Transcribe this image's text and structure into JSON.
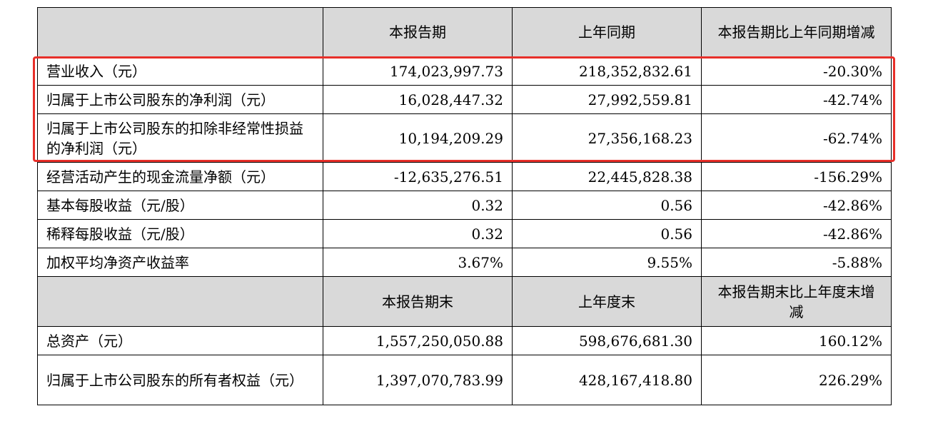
{
  "header1": {
    "blank": "",
    "current": "本报告期",
    "prior": "上年同期",
    "change": "本报告期比上年同期增减"
  },
  "rows1": [
    {
      "label": "营业收入（元）",
      "current": "174,023,997.73",
      "prior": "218,352,832.61",
      "change": "-20.30%"
    },
    {
      "label": "归属于上市公司股东的净利润（元）",
      "current": "16,028,447.32",
      "prior": "27,992,559.81",
      "change": "-42.74%"
    },
    {
      "label": "归属于上市公司股东的扣除非经常性损益的净利润（元）",
      "current": "10,194,209.29",
      "prior": "27,356,168.23",
      "change": "-62.74%"
    },
    {
      "label": "经营活动产生的现金流量净额（元）",
      "current": "-12,635,276.51",
      "prior": "22,445,828.38",
      "change": "-156.29%"
    },
    {
      "label": "基本每股收益（元/股）",
      "current": "0.32",
      "prior": "0.56",
      "change": "-42.86%"
    },
    {
      "label": "稀释每股收益（元/股）",
      "current": "0.32",
      "prior": "0.56",
      "change": "-42.86%"
    },
    {
      "label": "加权平均净资产收益率",
      "current": "3.67%",
      "prior": "9.55%",
      "change": "-5.88%"
    }
  ],
  "header2": {
    "blank": "",
    "current": "本报告期末",
    "prior": "上年度末",
    "change": "本报告期末比上年度末增减"
  },
  "rows2": [
    {
      "label": "总资产（元）",
      "current": "1,557,250,050.88",
      "prior": "598,676,681.30",
      "change": "160.12%"
    },
    {
      "label": "归属于上市公司股东的所有者权益（元）",
      "current": "1,397,070,783.99",
      "prior": "428,167,418.80",
      "change": "226.29%"
    }
  ],
  "colors": {
    "highlight": "#e8302a",
    "header_fill": "#d9d9d9"
  }
}
